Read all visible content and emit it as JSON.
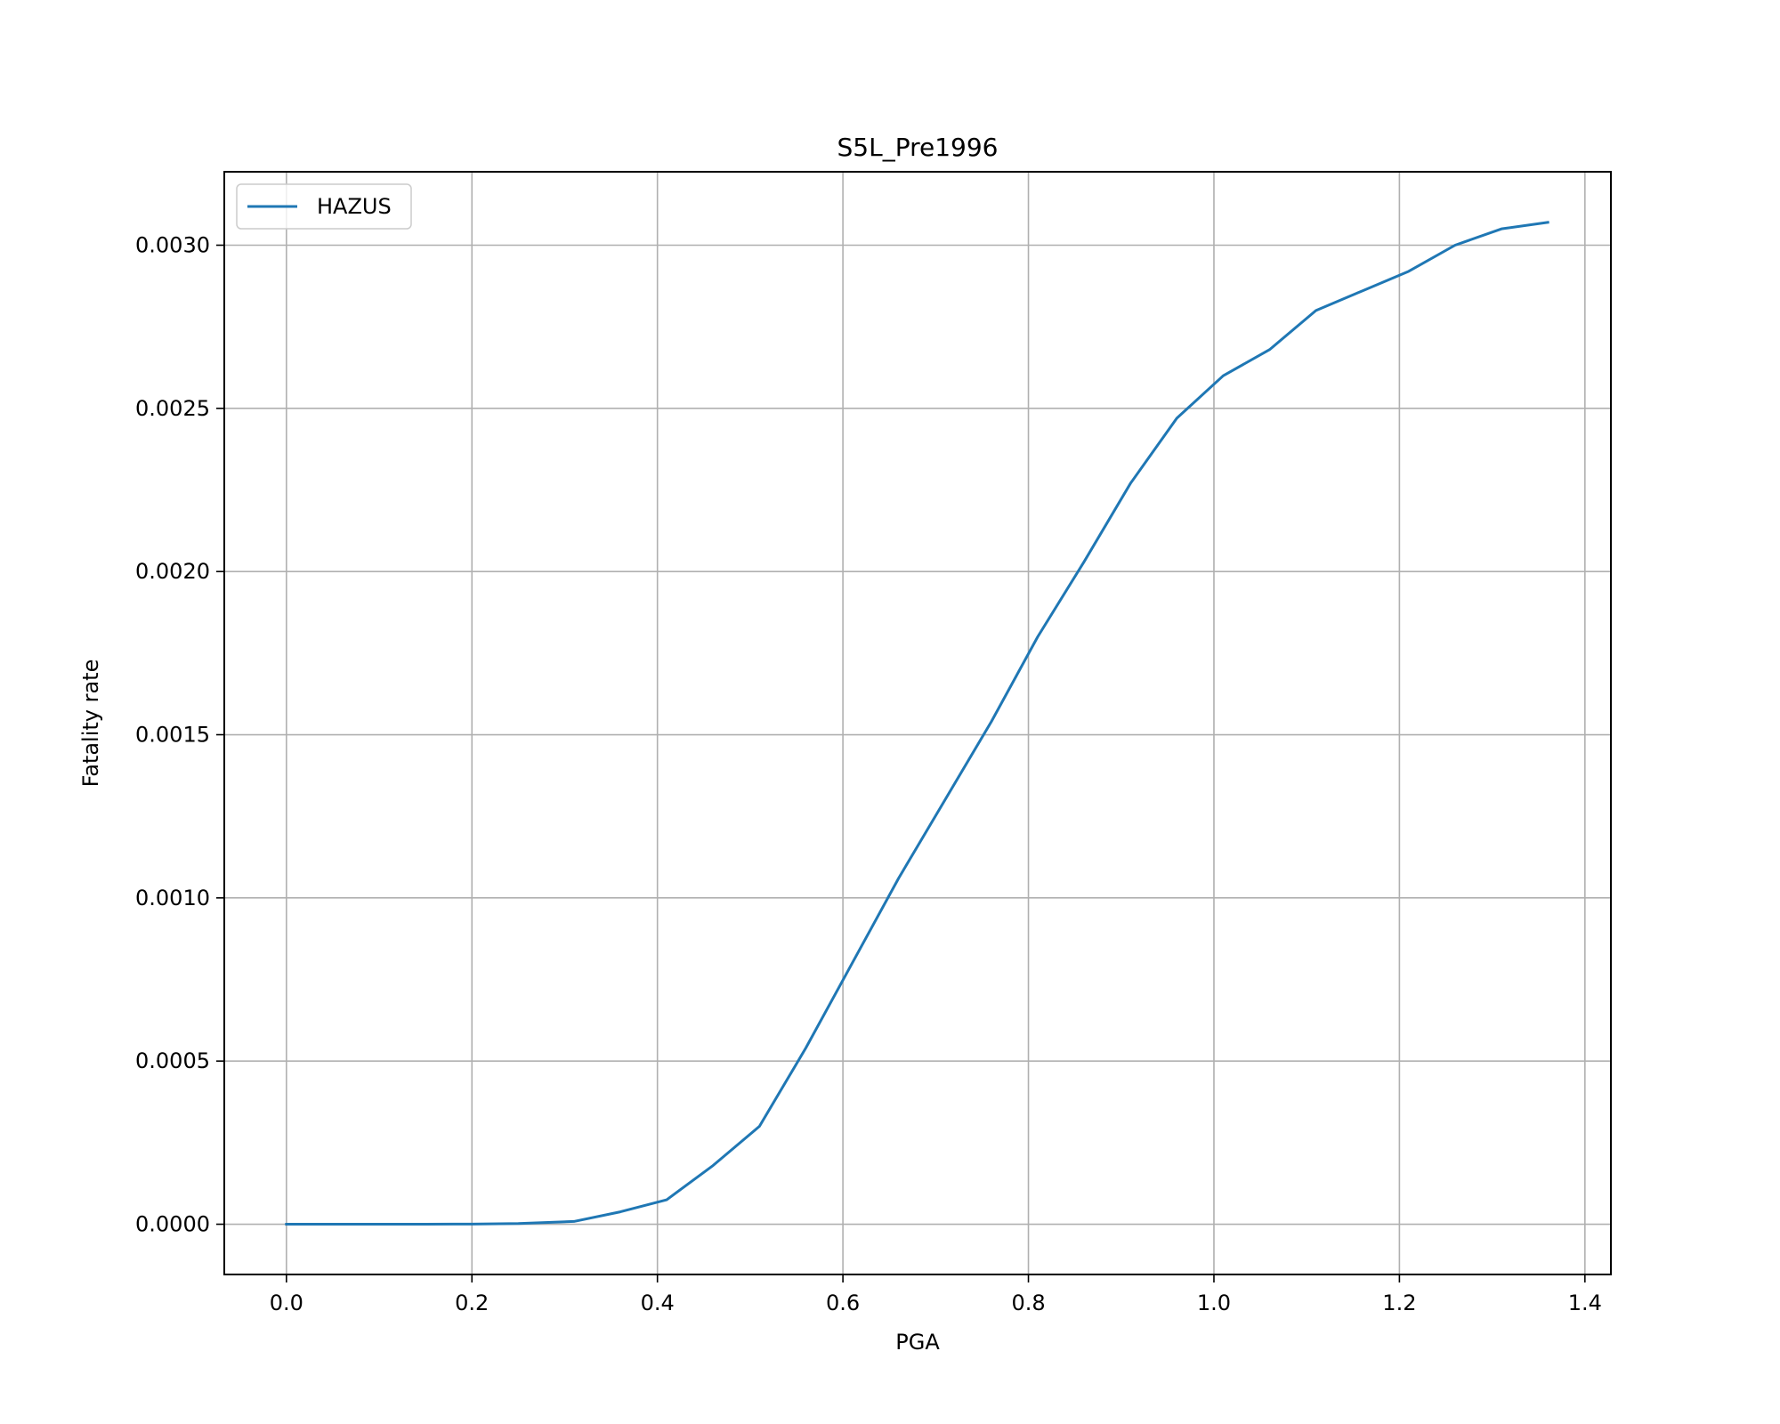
{
  "chart_data": {
    "type": "line",
    "title": "S5L_Pre1996",
    "xlabel": "PGA",
    "ylabel": "Fatality rate",
    "xlim": [
      -0.067,
      1.428
    ],
    "ylim": [
      -0.000154,
      0.003225
    ],
    "x_ticks": [
      0.0,
      0.2,
      0.4,
      0.6,
      0.8,
      1.0,
      1.2,
      1.4
    ],
    "x_tick_labels": [
      "0.0",
      "0.2",
      "0.4",
      "0.6",
      "0.8",
      "1.0",
      "1.2",
      "1.4"
    ],
    "y_ticks": [
      0.0,
      0.0005,
      0.001,
      0.0015,
      0.002,
      0.0025,
      0.003
    ],
    "y_tick_labels": [
      "0.0000",
      "0.0005",
      "0.0010",
      "0.0015",
      "0.0020",
      "0.0025",
      "0.0030"
    ],
    "grid": true,
    "legend_position": "upper-left",
    "series": [
      {
        "name": "HAZUS",
        "color": "#1f77b4",
        "x": [
          0.0,
          0.05,
          0.1,
          0.15,
          0.2,
          0.25,
          0.31,
          0.36,
          0.41,
          0.46,
          0.51,
          0.56,
          0.61,
          0.66,
          0.71,
          0.76,
          0.81,
          0.86,
          0.91,
          0.96,
          1.01,
          1.06,
          1.11,
          1.16,
          1.21,
          1.26,
          1.31,
          1.36
        ],
        "y": [
          0.0,
          0.0,
          0.0,
          0.0,
          5e-07,
          2e-06,
          8.5e-06,
          3.8e-05,
          7.5e-05,
          0.00018,
          0.0003,
          0.00054,
          0.0008,
          0.00106,
          0.0013,
          0.00154,
          0.0018,
          0.00203,
          0.00227,
          0.00247,
          0.0026,
          0.00268,
          0.0028,
          0.00286,
          0.00292,
          0.003,
          0.00305,
          0.00307
        ]
      }
    ]
  }
}
